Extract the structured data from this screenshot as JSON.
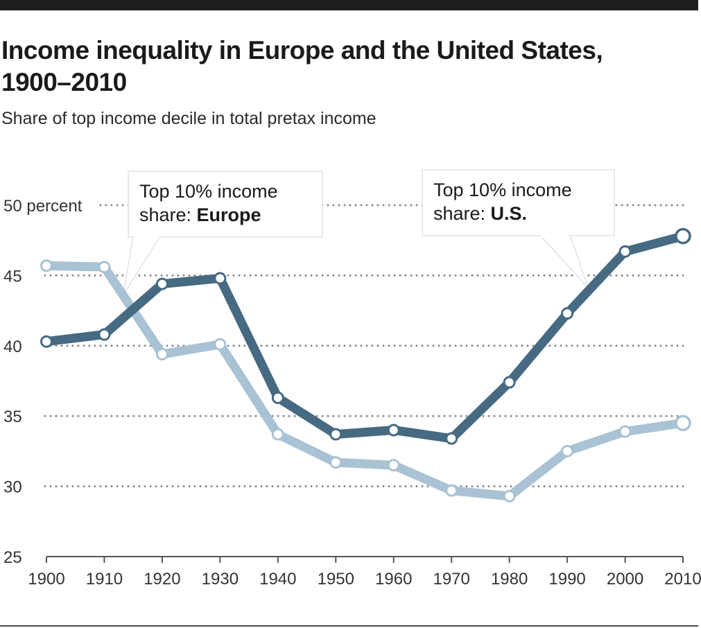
{
  "header": {
    "title_line1": "Income inequality in Europe and the United States,",
    "title_line2": "1900–2010",
    "subtitle": "Share of top income decile in total pretax income"
  },
  "colors": {
    "us": "#466a82",
    "europe": "#a9c2d4",
    "grid": "#888888",
    "text": "#333333"
  },
  "chart_data": {
    "type": "line",
    "title": "Income inequality in Europe and the United States, 1900–2010",
    "subtitle": "Share of top income decile in total pretax income",
    "x": [
      1900,
      1910,
      1920,
      1930,
      1940,
      1950,
      1960,
      1970,
      1980,
      1990,
      2000,
      2010
    ],
    "xticks": [
      "1900",
      "1910",
      "1920",
      "1930",
      "1940",
      "1950",
      "1960",
      "1970",
      "1980",
      "1990",
      "2000",
      "2010"
    ],
    "yticks": [
      "25",
      "30",
      "35",
      "40",
      "45",
      "50 percent"
    ],
    "ylim": [
      25,
      50
    ],
    "grid": true,
    "series": [
      {
        "name": "U.S.",
        "values": [
          40.3,
          40.8,
          44.4,
          44.8,
          36.3,
          33.7,
          34.0,
          33.4,
          37.4,
          42.3,
          46.7,
          47.8
        ]
      },
      {
        "name": "Europe",
        "values": [
          45.7,
          45.6,
          39.4,
          40.1,
          33.7,
          31.7,
          31.5,
          29.7,
          29.3,
          32.5,
          33.9,
          34.5
        ]
      }
    ],
    "annotations": [
      {
        "prefix": "Top 10% income",
        "line2": "share: ",
        "bold": "Europe",
        "series": "Europe"
      },
      {
        "prefix": "Top 10% income",
        "line2": "share: ",
        "bold": "U.S.",
        "series": "U.S."
      }
    ]
  }
}
